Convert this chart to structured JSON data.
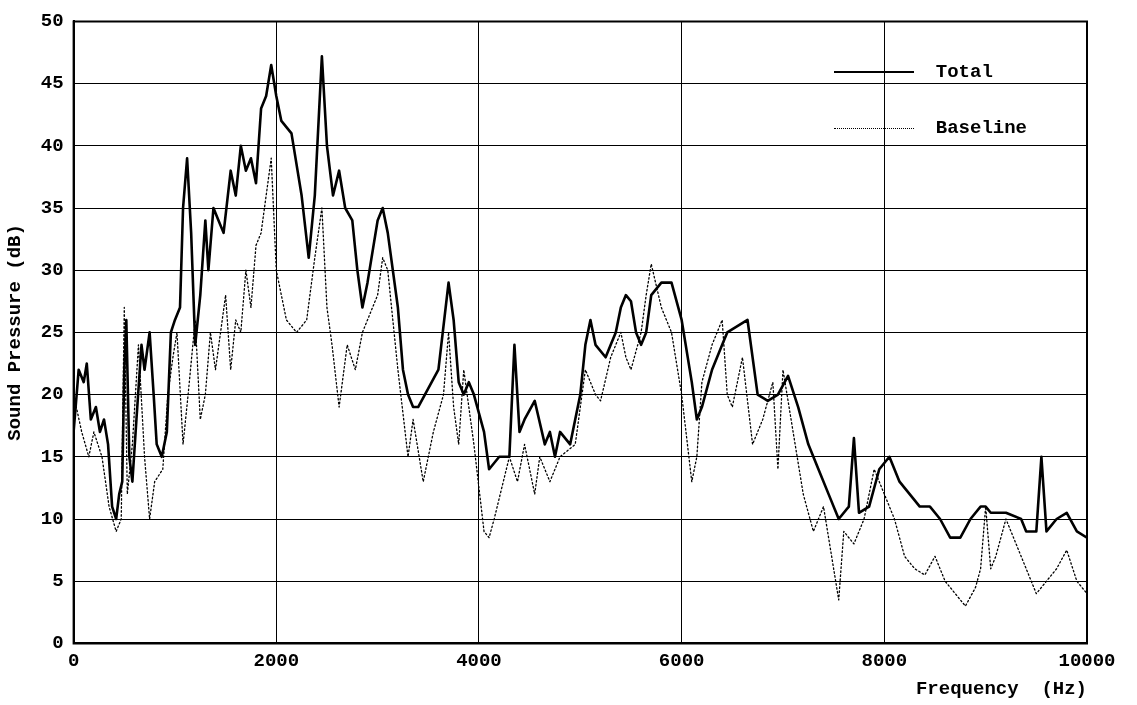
{
  "chart_data": {
    "type": "line",
    "xlabel": "Frequency  (Hz)",
    "ylabel": "Sound Pressure (dB)",
    "xlim": [
      0,
      10000
    ],
    "xticks": [
      0,
      2000,
      4000,
      6000,
      8000,
      10000
    ],
    "ylim": [
      0,
      50
    ],
    "yticks": [
      0,
      5,
      10,
      15,
      20,
      25,
      30,
      35,
      40,
      45,
      50
    ],
    "grid": true,
    "legend": "top right",
    "marker": "none",
    "series": [
      {
        "name": "Total",
        "color": "#000000",
        "line_style": "solid",
        "x": [
          0,
          50,
          100,
          130,
          170,
          220,
          260,
          300,
          340,
          380,
          420,
          450,
          480,
          500,
          520,
          550,
          580,
          620,
          670,
          700,
          750,
          790,
          820,
          870,
          920,
          960,
          1000,
          1050,
          1080,
          1120,
          1160,
          1200,
          1250,
          1300,
          1330,
          1380,
          1430,
          1480,
          1550,
          1600,
          1650,
          1700,
          1750,
          1800,
          1850,
          1900,
          1950,
          2000,
          2050,
          2150,
          2250,
          2320,
          2380,
          2450,
          2500,
          2560,
          2620,
          2680,
          2750,
          2800,
          2850,
          2900,
          3000,
          3050,
          3100,
          3200,
          3250,
          3300,
          3350,
          3400,
          3500,
          3600,
          3700,
          3750,
          3800,
          3850,
          3900,
          3950,
          4050,
          4100,
          4200,
          4300,
          4350,
          4400,
          4450,
          4550,
          4650,
          4700,
          4750,
          4800,
          4900,
          5000,
          5050,
          5100,
          5150,
          5250,
          5300,
          5350,
          5400,
          5450,
          5500,
          5550,
          5600,
          5650,
          5700,
          5800,
          5900,
          6000,
          6100,
          6150,
          6200,
          6300,
          6400,
          6450,
          6550,
          6650,
          6750,
          6850,
          6950,
          7050,
          7150,
          7250,
          7350,
          7450,
          7550,
          7650,
          7700,
          7750,
          7850,
          7950,
          8050,
          8150,
          8250,
          8350,
          8450,
          8550,
          8650,
          8750,
          8850,
          8950,
          9000,
          9050,
          9200,
          9350,
          9400,
          9500,
          9550,
          9600,
          9700,
          9800,
          9900,
          10000
        ],
        "values": [
          17,
          22,
          21,
          22.5,
          18,
          19,
          17,
          18,
          16,
          11,
          10,
          12,
          13,
          22,
          26,
          15,
          13,
          18,
          24,
          22,
          25,
          20,
          16,
          15,
          17,
          25,
          26,
          27,
          35,
          39,
          33,
          24,
          28,
          34,
          30,
          35,
          34,
          33,
          38,
          36,
          40,
          38,
          39,
          37,
          43,
          44,
          46.5,
          44,
          42,
          41,
          36,
          31,
          36,
          47.2,
          40,
          36,
          38,
          35,
          34,
          30,
          27,
          29,
          34,
          35,
          33,
          27,
          22,
          20,
          19,
          19,
          20.5,
          22,
          29,
          26,
          21,
          20,
          21,
          20,
          17,
          14,
          15,
          15,
          24,
          17,
          18,
          19.5,
          16,
          17,
          15,
          17,
          16,
          20,
          24,
          26,
          24,
          23,
          24,
          25,
          27,
          28,
          27.5,
          25,
          24,
          25,
          28,
          29,
          29,
          26,
          21,
          18,
          19,
          22,
          24,
          25,
          25.5,
          26,
          20,
          19.5,
          20,
          21.5,
          19,
          16,
          14,
          12,
          10,
          11,
          16.5,
          10.5,
          11,
          14,
          15,
          13,
          12,
          11,
          11,
          10,
          8.5,
          8.5,
          10,
          11,
          11,
          10.5,
          10.5,
          10,
          9,
          9,
          15,
          9,
          10,
          10.5,
          9,
          8.5
        ]
      },
      {
        "name": "Baseline",
        "color": "#000000",
        "line_style": "dotted",
        "x": [
          0,
          80,
          150,
          200,
          280,
          350,
          420,
          470,
          500,
          530,
          580,
          640,
          700,
          750,
          800,
          880,
          930,
          980,
          1020,
          1080,
          1130,
          1200,
          1250,
          1300,
          1350,
          1400,
          1450,
          1500,
          1550,
          1600,
          1650,
          1700,
          1750,
          1800,
          1850,
          1900,
          1950,
          2000,
          2050,
          2100,
          2200,
          2300,
          2380,
          2450,
          2500,
          2550,
          2620,
          2700,
          2780,
          2850,
          2900,
          3000,
          3050,
          3100,
          3200,
          3300,
          3350,
          3450,
          3550,
          3650,
          3700,
          3750,
          3800,
          3850,
          3950,
          4050,
          4100,
          4150,
          4300,
          4380,
          4450,
          4550,
          4600,
          4700,
          4800,
          4950,
          5050,
          5150,
          5200,
          5300,
          5400,
          5450,
          5500,
          5600,
          5650,
          5700,
          5800,
          5900,
          6000,
          6100,
          6150,
          6200,
          6300,
          6400,
          6450,
          6500,
          6600,
          6700,
          6800,
          6900,
          6950,
          7000,
          7100,
          7200,
          7300,
          7400,
          7500,
          7550,
          7600,
          7700,
          7800,
          7900,
          8000,
          8100,
          8200,
          8300,
          8400,
          8500,
          8600,
          8700,
          8800,
          8900,
          8950,
          9000,
          9050,
          9100,
          9200,
          9300,
          9400,
          9500,
          9600,
          9700,
          9800,
          9900,
          10000
        ],
        "values": [
          20,
          17,
          15,
          17,
          15,
          11,
          9,
          10,
          27,
          12,
          16,
          24,
          15,
          10,
          13,
          14,
          20,
          23,
          25,
          16,
          20,
          26,
          18,
          20,
          25,
          22,
          25,
          28,
          22,
          26,
          25,
          30,
          27,
          32,
          33,
          36,
          39,
          30,
          28,
          26,
          25,
          26,
          31,
          35,
          27,
          24,
          19,
          24,
          22,
          25,
          26,
          28,
          31,
          30,
          22,
          15,
          18,
          13,
          17,
          20,
          25,
          19,
          16,
          22,
          16,
          9,
          8.5,
          10,
          15,
          13,
          16,
          12,
          15,
          13,
          15,
          16,
          22,
          20,
          19.5,
          23,
          25,
          23,
          22,
          25,
          28,
          30.5,
          27,
          25,
          20,
          13,
          15,
          21,
          24,
          26,
          20,
          19,
          23,
          16,
          18,
          21,
          14,
          22,
          17,
          12,
          9,
          11,
          6,
          3.5,
          9,
          8,
          10,
          14,
          12,
          10,
          7,
          6,
          5.5,
          7,
          5,
          4,
          3,
          4.5,
          6,
          11,
          6,
          7,
          10,
          8,
          6,
          4,
          5,
          6,
          7.5,
          5,
          4
        ]
      }
    ]
  }
}
